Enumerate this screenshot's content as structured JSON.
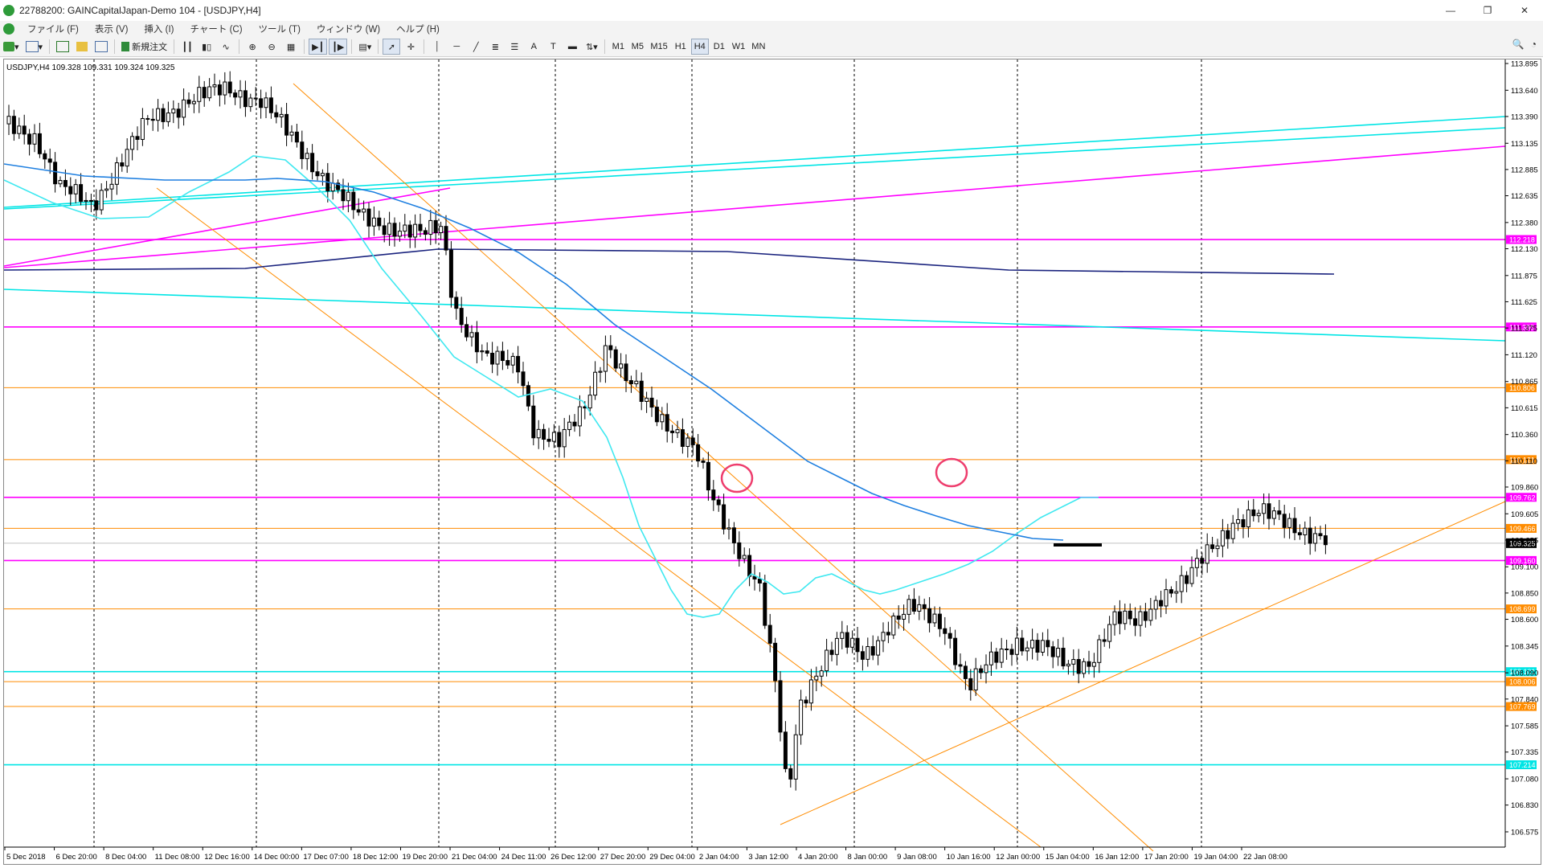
{
  "window": {
    "title": "22788200: GAINCapitalJapan-Demo 104 - [USDJPY,H4]"
  },
  "menu": [
    "ファイル (F)",
    "表示 (V)",
    "挿入 (I)",
    "チャート (C)",
    "ツール (T)",
    "ウィンドウ (W)",
    "ヘルプ (H)"
  ],
  "toolbar": {
    "new_order": "新規注文",
    "timeframes": [
      "M1",
      "M5",
      "M15",
      "H1",
      "H4",
      "D1",
      "W1",
      "MN"
    ],
    "active_timeframe": "H4"
  },
  "chart": {
    "header": "USDJPY,H4  109.328 109.331 109.324 109.325",
    "y_ticks": [
      "113.895",
      "113.640",
      "113.390",
      "113.135",
      "112.885",
      "112.635",
      "112.380",
      "112.130",
      "111.875",
      "111.625",
      "111.375",
      "111.120",
      "110.865",
      "110.615",
      "110.360",
      "110.110",
      "109.860",
      "109.605",
      "109.355",
      "109.100",
      "108.850",
      "108.600",
      "108.345",
      "108.090",
      "107.840",
      "107.585",
      "107.335",
      "107.080",
      "106.830",
      "106.575"
    ],
    "x_ticks": [
      "5 Dec 2018",
      "6 Dec 20:00",
      "8 Dec 04:00",
      "11 Dec 08:00",
      "12 Dec 16:00",
      "14 Dec 00:00",
      "17 Dec 07:00",
      "18 Dec 12:00",
      "19 Dec 20:00",
      "21 Dec 04:00",
      "24 Dec 11:00",
      "26 Dec 12:00",
      "27 Dec 20:00",
      "29 Dec 04:00",
      "2 Jan 04:00",
      "3 Jan 12:00",
      "4 Jan 20:00",
      "8 Jan 00:00",
      "9 Jan 08:00",
      "10 Jan 16:00",
      "12 Jan 00:00",
      "15 Jan 04:00",
      "16 Jan 12:00",
      "17 Jan 20:00",
      "19 Jan 04:00",
      "22 Jan 08:00"
    ],
    "current_price": "109.325",
    "level_labels": [
      {
        "text": "112.218",
        "price": 112.218,
        "color": "#ff00ff"
      },
      {
        "text": "111.385",
        "price": 111.385,
        "color": "#ff00ff"
      },
      {
        "text": "110.806",
        "price": 110.806,
        "color": "#ff8c00"
      },
      {
        "text": "110.121",
        "price": 110.121,
        "color": "#ff8c00"
      },
      {
        "text": "109.762",
        "price": 109.762,
        "color": "#ff00ff"
      },
      {
        "text": "109.466",
        "price": 109.466,
        "color": "#ff8c00"
      },
      {
        "text": "109.160",
        "price": 109.16,
        "color": "#ff00ff"
      },
      {
        "text": "108.699",
        "price": 108.699,
        "color": "#ff8c00"
      },
      {
        "text": "108.101",
        "price": 108.101,
        "color": "#00e5e5"
      },
      {
        "text": "108.006",
        "price": 108.006,
        "color": "#ff8c00"
      },
      {
        "text": "107.769",
        "price": 107.769,
        "color": "#ff8c00"
      },
      {
        "text": "107.214",
        "price": 107.214,
        "color": "#00e5e5"
      }
    ],
    "colors": {
      "magenta": "#ff00ff",
      "orange": "#ff8c00",
      "cyan": "#00e5e5",
      "ma_short": "#3fe8f0",
      "ma_long": "#1e7fe0",
      "ma_dark": "#1a237e",
      "candle": "#000000"
    }
  }
}
